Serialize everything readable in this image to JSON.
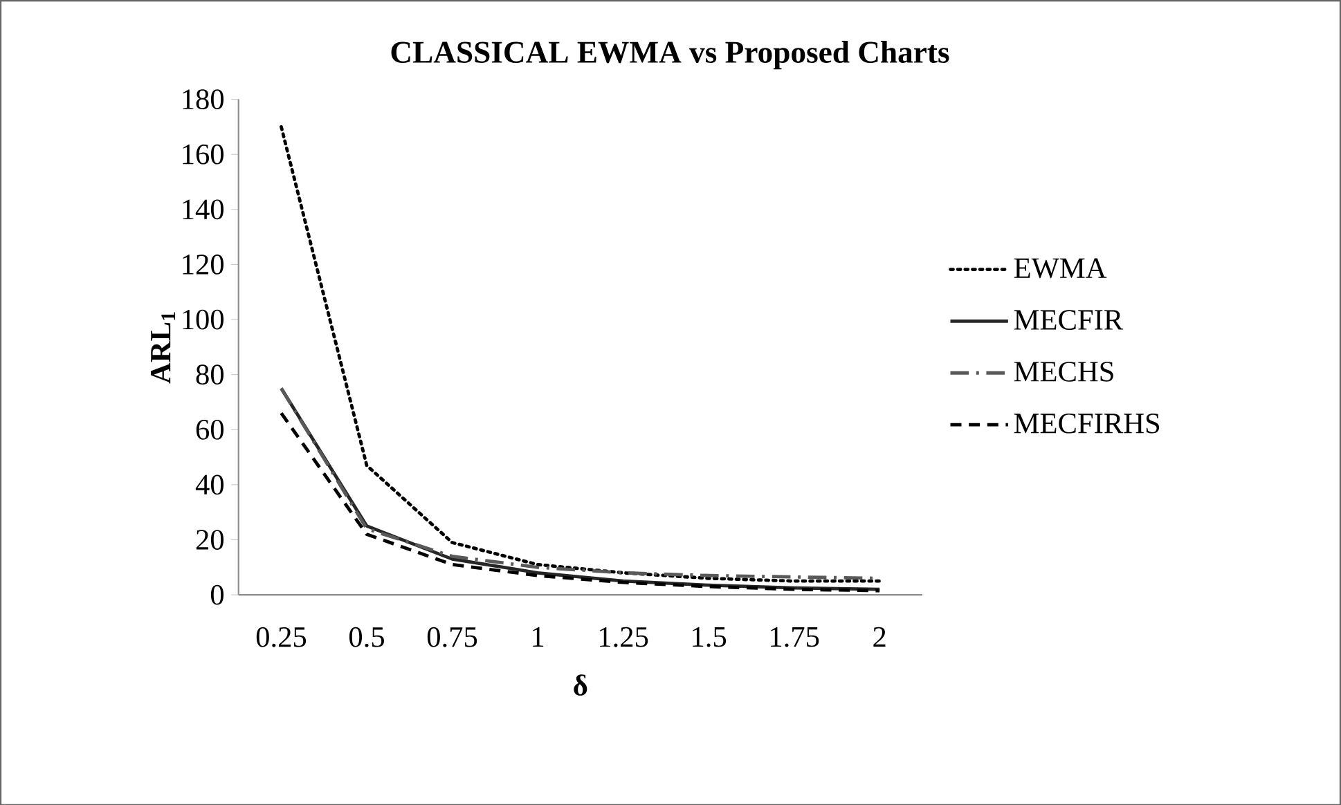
{
  "chart_data": {
    "type": "line",
    "title": "CLASSICAL EWMA vs Proposed Charts",
    "xlabel": "δ",
    "ylabel": "ARL$_{1}$",
    "categories": [
      "0.25",
      "0.5",
      "0.75",
      "1",
      "1.25",
      "1.5",
      "1.75",
      "2"
    ],
    "series": [
      {
        "name": "EWMA",
        "color": "#000000",
        "line_style": "dotted",
        "values": [
          170,
          47,
          19,
          11,
          8,
          6,
          5,
          5
        ]
      },
      {
        "name": "MECFIR",
        "color": "#262626",
        "line_style": "solid",
        "values": [
          75,
          25,
          13,
          8,
          5,
          3.5,
          2.5,
          2
        ]
      },
      {
        "name": "MECHS",
        "color": "#595959",
        "line_style": "dashdot",
        "values": [
          75,
          24,
          14,
          10,
          8,
          7,
          6.5,
          6
        ]
      },
      {
        "name": "MECFIRHS",
        "color": "#000000",
        "line_style": "dashed",
        "values": [
          66,
          22,
          11,
          7,
          4.5,
          3,
          2,
          1.5
        ]
      }
    ],
    "ylim": [
      0,
      180
    ],
    "yticks": [
      0,
      20,
      40,
      60,
      80,
      100,
      120,
      140,
      160,
      180
    ],
    "grid": false,
    "legend": "right",
    "marker": "none"
  }
}
